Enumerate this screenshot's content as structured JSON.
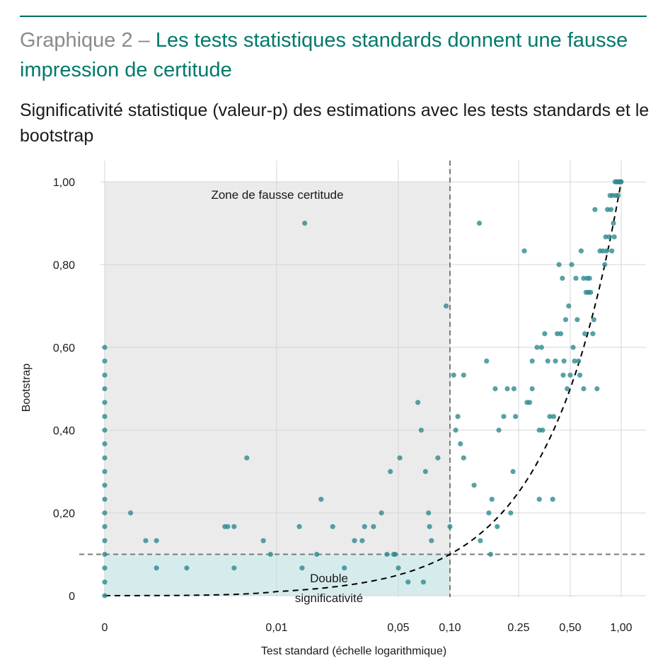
{
  "header": {
    "title_prefix": "Graphique 2 – ",
    "title_main": "Les tests statistiques standards donnent une fausse impression de certitude",
    "subtitle": "Significativité statistique (valeur-p) des estimations avec les tests standards et le bootstrap"
  },
  "colors": {
    "title_accent": "#007a6a",
    "title_prefix": "#8a8a8a",
    "points": "#2e8a8f",
    "false_certainty_zone": "#ebebeb",
    "double_significance_zone": "#d6ecec"
  },
  "chart_data": {
    "type": "scatter",
    "xlabel": "Test standard (échelle logarithmique)",
    "ylabel": "Bootstrap",
    "x_scale": "log",
    "xlim": [
      0,
      1
    ],
    "ylim": [
      0,
      1
    ],
    "x_ticks": [
      {
        "value": 0,
        "label": "0"
      },
      {
        "value": 0.01,
        "label": "0,01"
      },
      {
        "value": 0.05,
        "label": "0,05"
      },
      {
        "value": 0.1,
        "label": "0,10"
      },
      {
        "value": 0.25,
        "label": "0.25"
      },
      {
        "value": 0.5,
        "label": "0,50"
      },
      {
        "value": 1,
        "label": "1,00"
      }
    ],
    "y_ticks": [
      {
        "value": 0,
        "label": "0"
      },
      {
        "value": 0.2,
        "label": "0,20"
      },
      {
        "value": 0.4,
        "label": "0,40"
      },
      {
        "value": 0.6,
        "label": "0,60"
      },
      {
        "value": 0.8,
        "label": "0,80"
      },
      {
        "value": 1,
        "label": "1,00"
      }
    ],
    "grid": true,
    "reference_lines": [
      {
        "axis": "x",
        "value": 0.1,
        "style": "dashed"
      },
      {
        "axis": "y",
        "value": 0.1,
        "style": "dashed"
      }
    ],
    "regions": [
      {
        "label": "Zone de fausse certitude",
        "x": [
          0,
          0.1
        ],
        "y": [
          0,
          1
        ]
      },
      {
        "label": "Double significativité",
        "label_lines": [
          "Double",
          "significativité"
        ],
        "x": [
          0,
          0.1
        ],
        "y": [
          0,
          0.1
        ]
      }
    ],
    "curve": {
      "name": "",
      "style": "dashed",
      "equation": "y = x"
    },
    "points": [
      [
        0,
        0
      ],
      [
        0,
        0.033
      ],
      [
        0,
        0.067
      ],
      [
        0,
        0.1
      ],
      [
        0,
        0.133
      ],
      [
        0,
        0.167
      ],
      [
        0,
        0.2
      ],
      [
        0,
        0.233
      ],
      [
        0,
        0.267
      ],
      [
        0,
        0.3
      ],
      [
        0,
        0.333
      ],
      [
        0,
        0.367
      ],
      [
        0,
        0.4
      ],
      [
        0,
        0.433
      ],
      [
        0,
        0.467
      ],
      [
        0,
        0.5
      ],
      [
        0,
        0.533
      ],
      [
        0,
        0.567
      ],
      [
        0,
        0.6
      ],
      [
        0.0002,
        0.2
      ],
      [
        0.0003,
        0.133
      ],
      [
        0.0004,
        0.133
      ],
      [
        0.0004,
        0.067
      ],
      [
        0.0009,
        0.067
      ],
      [
        0.0025,
        0.167
      ],
      [
        0.0027,
        0.167
      ],
      [
        0.0032,
        0.167
      ],
      [
        0.0032,
        0.067
      ],
      [
        0.0045,
        0.333
      ],
      [
        0.007,
        0.133
      ],
      [
        0.0085,
        0.1
      ],
      [
        0.0135,
        0.167
      ],
      [
        0.014,
        0.067
      ],
      [
        0.0145,
        0.9
      ],
      [
        0.017,
        0.1
      ],
      [
        0.018,
        0.233
      ],
      [
        0.021,
        0.167
      ],
      [
        0.0245,
        0.067
      ],
      [
        0.028,
        0.133
      ],
      [
        0.031,
        0.133
      ],
      [
        0.032,
        0.167
      ],
      [
        0.036,
        0.167
      ],
      [
        0.04,
        0.2
      ],
      [
        0.043,
        0.1
      ],
      [
        0.045,
        0.3
      ],
      [
        0.047,
        0.1
      ],
      [
        0.048,
        0.1
      ],
      [
        0.051,
        0.333
      ],
      [
        0.05,
        0.067
      ],
      [
        0.057,
        0.033
      ],
      [
        0.065,
        0.467
      ],
      [
        0.068,
        0.4
      ],
      [
        0.07,
        0.033
      ],
      [
        0.072,
        0.3
      ],
      [
        0.075,
        0.2
      ],
      [
        0.076,
        0.167
      ],
      [
        0.078,
        0.133
      ],
      [
        0.085,
        0.333
      ],
      [
        0.095,
        0.7
      ],
      [
        0.1,
        0.167
      ],
      [
        0.105,
        0.533
      ],
      [
        0.108,
        0.4
      ],
      [
        0.111,
        0.433
      ],
      [
        0.115,
        0.367
      ],
      [
        0.12,
        0.333
      ],
      [
        0.12,
        0.533
      ],
      [
        0.138,
        0.267
      ],
      [
        0.148,
        0.9
      ],
      [
        0.15,
        0.133
      ],
      [
        0.163,
        0.567
      ],
      [
        0.168,
        0.2
      ],
      [
        0.172,
        0.1
      ],
      [
        0.175,
        0.233
      ],
      [
        0.183,
        0.5
      ],
      [
        0.188,
        0.167
      ],
      [
        0.192,
        0.4
      ],
      [
        0.205,
        0.433
      ],
      [
        0.215,
        0.5
      ],
      [
        0.225,
        0.2
      ],
      [
        0.232,
        0.3
      ],
      [
        0.235,
        0.5
      ],
      [
        0.24,
        0.433
      ],
      [
        0.27,
        0.833
      ],
      [
        0.28,
        0.467
      ],
      [
        0.29,
        0.467
      ],
      [
        0.3,
        0.567
      ],
      [
        0.3,
        0.5
      ],
      [
        0.32,
        0.6
      ],
      [
        0.33,
        0.233
      ],
      [
        0.33,
        0.4
      ],
      [
        0.34,
        0.6
      ],
      [
        0.345,
        0.4
      ],
      [
        0.355,
        0.633
      ],
      [
        0.37,
        0.567
      ],
      [
        0.38,
        0.433
      ],
      [
        0.395,
        0.233
      ],
      [
        0.4,
        0.433
      ],
      [
        0.41,
        0.567
      ],
      [
        0.42,
        0.633
      ],
      [
        0.43,
        0.8
      ],
      [
        0.44,
        0.633
      ],
      [
        0.45,
        0.767
      ],
      [
        0.455,
        0.533
      ],
      [
        0.46,
        0.567
      ],
      [
        0.47,
        0.667
      ],
      [
        0.48,
        0.5
      ],
      [
        0.49,
        0.7
      ],
      [
        0.5,
        0.533
      ],
      [
        0.51,
        0.8
      ],
      [
        0.52,
        0.6
      ],
      [
        0.53,
        0.567
      ],
      [
        0.54,
        0.767
      ],
      [
        0.55,
        0.667
      ],
      [
        0.56,
        0.567
      ],
      [
        0.57,
        0.533
      ],
      [
        0.58,
        0.833
      ],
      [
        0.6,
        0.5
      ],
      [
        0.6,
        0.767
      ],
      [
        0.61,
        0.633
      ],
      [
        0.62,
        0.733
      ],
      [
        0.63,
        0.767
      ],
      [
        0.64,
        0.733
      ],
      [
        0.65,
        0.767
      ],
      [
        0.66,
        0.733
      ],
      [
        0.68,
        0.633
      ],
      [
        0.69,
        0.667
      ],
      [
        0.7,
        0.933
      ],
      [
        0.72,
        0.5
      ],
      [
        0.75,
        0.833
      ],
      [
        0.78,
        0.833
      ],
      [
        0.8,
        0.8
      ],
      [
        0.81,
        0.867
      ],
      [
        0.82,
        0.833
      ],
      [
        0.83,
        0.933
      ],
      [
        0.85,
        0.867
      ],
      [
        0.86,
        0.967
      ],
      [
        0.87,
        0.933
      ],
      [
        0.88,
        0.833
      ],
      [
        0.89,
        0.967
      ],
      [
        0.9,
        0.9
      ],
      [
        0.91,
        0.867
      ],
      [
        0.92,
        1
      ],
      [
        0.93,
        0.967
      ],
      [
        0.94,
        1
      ],
      [
        0.95,
        1
      ],
      [
        0.96,
        0.967
      ],
      [
        0.97,
        1
      ],
      [
        0.98,
        1
      ],
      [
        0.99,
        1
      ],
      [
        1,
        1
      ]
    ]
  }
}
